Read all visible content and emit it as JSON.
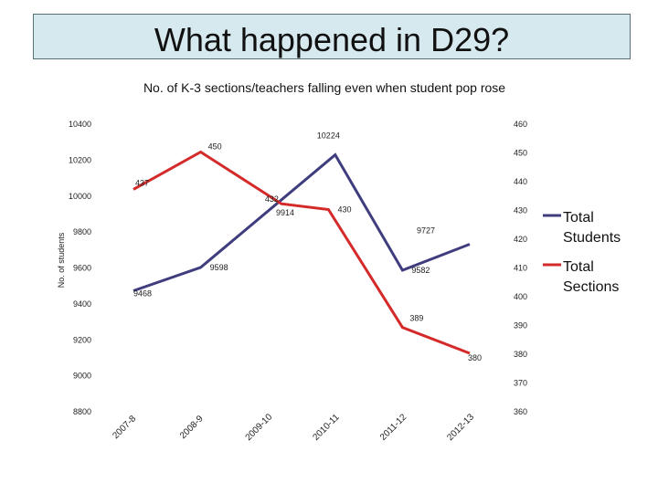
{
  "page_title": "What happened in D29?",
  "chart_data": {
    "type": "line",
    "title": "No. of K-3 sections/teachers falling even when student pop rose",
    "ylabel": "No. of students",
    "y2label": "",
    "categories": [
      "2007-8",
      "2008-9",
      "2009-10",
      "2010-11",
      "2011-12",
      "2012-13"
    ],
    "ylim": [
      8800,
      10400
    ],
    "yticks": [
      8800,
      9000,
      9200,
      9400,
      9600,
      9800,
      10000,
      10200,
      10400
    ],
    "y2lim": [
      360,
      460
    ],
    "y2ticks": [
      360,
      370,
      380,
      390,
      400,
      410,
      420,
      430,
      440,
      450,
      460
    ],
    "legend_position": "right",
    "grid": false,
    "series": [
      {
        "name": "Total Students",
        "axis": "left",
        "color": "#3f3d7e",
        "x": [
          0,
          1,
          3,
          4,
          5
        ],
        "values": [
          9468,
          9598,
          10224,
          9582,
          9727
        ],
        "labels": [
          "9468",
          "9598",
          "10224",
          "9582",
          "9727"
        ]
      },
      {
        "name": "Total Sections",
        "axis": "right",
        "color": "#d42a2a",
        "x": [
          0,
          1,
          2.2,
          2.9,
          4,
          5
        ],
        "values": [
          437,
          450,
          432,
          430,
          389,
          380
        ],
        "labels": [
          "437",
          "450",
          "432",
          "430",
          "389",
          "380"
        ]
      }
    ],
    "annotations": [
      "9914"
    ]
  }
}
